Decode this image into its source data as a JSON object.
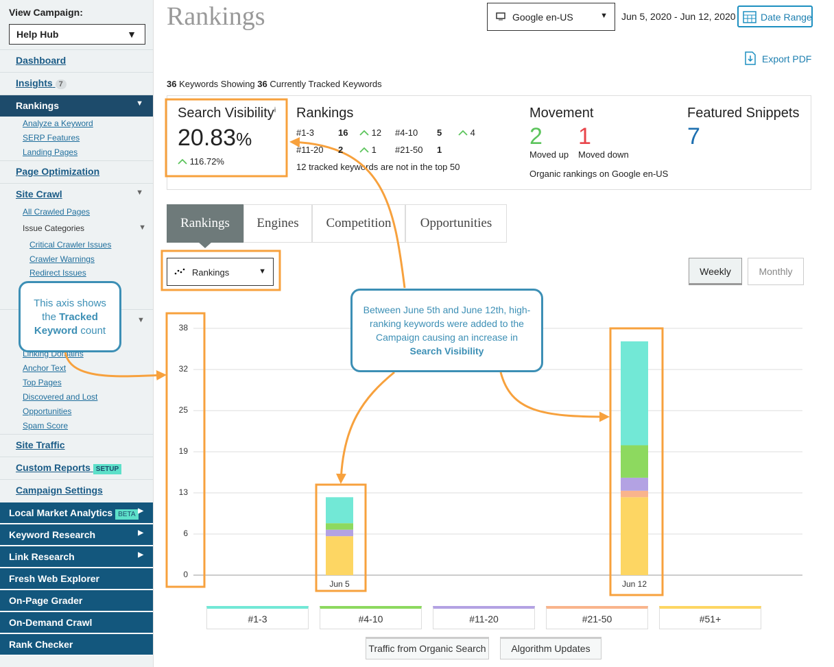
{
  "sidebar": {
    "label": "View Campaign:",
    "campaign": "Help Hub",
    "nav": [
      {
        "label": "Dashboard"
      },
      {
        "label": "Insights",
        "badge": 7
      },
      {
        "label": "Rankings",
        "children": [
          "Analyze a Keyword",
          "SERP Features",
          "Landing Pages"
        ]
      },
      {
        "label": "Page Optimization"
      },
      {
        "label": "Site Crawl",
        "children": [
          "All Crawled Pages",
          "Issue Categories"
        ],
        "issue_categories": [
          "Critical Crawler Issues",
          "Crawler Warnings",
          "Redirect Issues"
        ]
      },
      {
        "children": [
          "Linking Domains",
          "Anchor Text",
          "Top Pages",
          "Discovered and Lost",
          "Opportunities",
          "Spam Score"
        ]
      },
      {
        "label": "Site Traffic"
      },
      {
        "label": "Custom Reports",
        "badge": "SETUP"
      },
      {
        "label": "Campaign Settings"
      }
    ],
    "tools": [
      {
        "label": "Local Market Analytics",
        "badge": "BETA"
      },
      {
        "label": "Keyword Research"
      },
      {
        "label": "Link Research"
      },
      {
        "label": "Fresh Web Explorer"
      },
      {
        "label": "On-Page Grader"
      },
      {
        "label": "On-Demand Crawl"
      },
      {
        "label": "Rank Checker"
      }
    ]
  },
  "header": {
    "title": "Rankings",
    "engine": "Google en-US",
    "dates": "Jun 5, 2020 - Jun 12, 2020",
    "date_button": "Date Range",
    "export": "Export PDF"
  },
  "keywords": {
    "showing": 36,
    "showing_text": "Keywords Showing",
    "tracked": 36,
    "tracked_text": "Currently Tracked Keywords"
  },
  "summary": {
    "visibility": {
      "title": "Search Visibility",
      "info": "i",
      "value": "20.83",
      "unit": "%",
      "change": "116.72%"
    },
    "rankings": {
      "title": "Rankings",
      "rows": [
        {
          "label": "#1-3",
          "value": 16,
          "change": 12
        },
        {
          "label": "#4-10",
          "value": 5,
          "change": 4
        },
        {
          "label": "#11-20",
          "value": 2,
          "change": 1
        },
        {
          "label": "#21-50",
          "value": 1
        }
      ],
      "note": "12 tracked keywords are not in the top 50"
    },
    "movement": {
      "title": "Movement",
      "up": 2,
      "up_label": "Moved up",
      "down": 1,
      "down_label": "Moved down",
      "note": "Organic rankings on Google en-US"
    },
    "snippets": {
      "title": "Featured Snippets",
      "value": 7
    }
  },
  "tabs": [
    "Rankings",
    "Engines",
    "Competition",
    "Opportunities"
  ],
  "controls": {
    "dropdown": "Rankings",
    "toggles": [
      "Weekly",
      "Monthly"
    ],
    "buttons": [
      "Traffic from Organic Search",
      "Algorithm Updates"
    ]
  },
  "chart_data": {
    "type": "stacked_bar",
    "categories": [
      "Jun 5",
      "Jun 12"
    ],
    "ylim": [
      0,
      38
    ],
    "yticks": [
      0,
      {
        "value": 6.33,
        "label": "6"
      },
      {
        "value": 12.67,
        "label": "13"
      },
      19,
      {
        "value": 25.33,
        "label": "25"
      },
      {
        "value": 31.67,
        "label": "32"
      },
      38
    ],
    "grid": true,
    "series": [
      {
        "name": "#51+",
        "color": "#fdd663",
        "values": [
          6,
          12
        ]
      },
      {
        "name": "#21-50",
        "color": "#f9b48c",
        "values": [
          0,
          1
        ]
      },
      {
        "name": "#11-20",
        "color": "#b3a2e3",
        "values": [
          1,
          2
        ]
      },
      {
        "name": "#4-10",
        "color": "#8dd95f",
        "values": [
          1,
          5
        ]
      },
      {
        "name": "#1-3",
        "color": "#72e8d6",
        "values": [
          4,
          16
        ]
      }
    ]
  },
  "annotations": [
    {
      "parts": [
        "This axis shows the",
        "Tracked Keyword",
        "count"
      ]
    },
    {
      "parts": [
        "Between June 5th and June 12th, high-ranking keywords were added to the Campaign causing an increase in",
        "Search Visibility"
      ]
    }
  ]
}
